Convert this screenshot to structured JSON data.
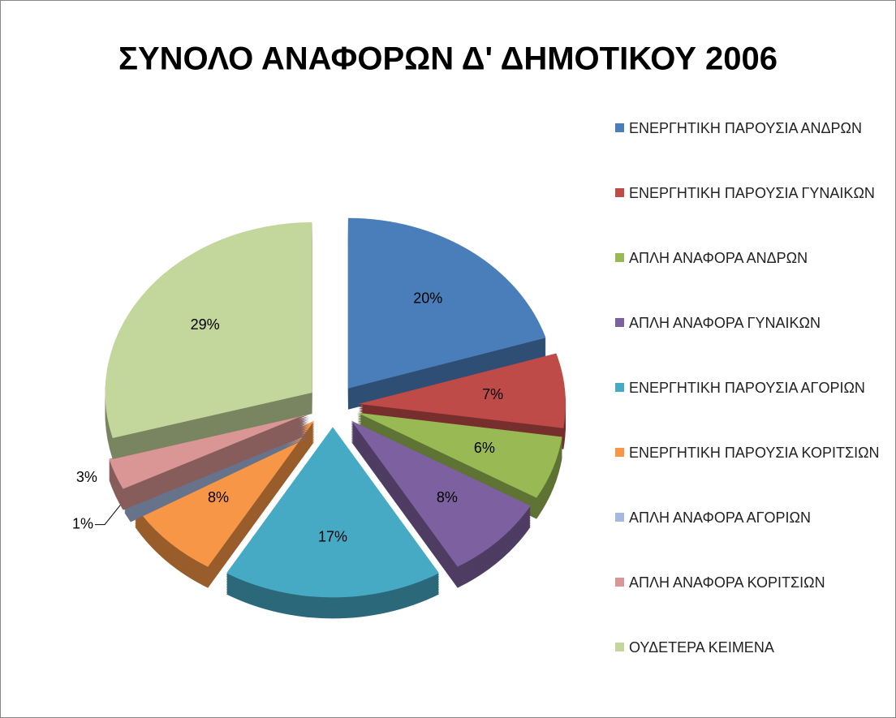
{
  "chart_data": {
    "type": "pie3d",
    "title": "ΣΥΝΟΛΟ ΑΝΑΦΟΡΩΝ Δ' ΔΗΜΟΤΙΚΟΥ 2006",
    "categories": [
      "ΕΝΕΡΓΗΤΙΚΗ ΠΑΡΟΥΣΙΑ ΑΝΔΡΩΝ",
      "ΕΝΕΡΓΗΤΙΚΗ ΠΑΡΟΥΣΙΑ ΓΥΝΑΙΚΩΝ",
      "ΑΠΛΗ ΑΝΑΦΟΡΑ ΑΝΔΡΩΝ",
      "ΑΠΛΗ ΑΝΑΦΟΡΑ ΓΥΝΑΙΚΩΝ",
      "ΕΝΕΡΓΗΤΙΚΗ ΠΑΡΟΥΣΙΑ ΑΓΟΡΙΩΝ",
      "ΕΝΕΡΓΗΤΙΚΗ ΠΑΡΟΥΣΙΑ ΚΟΡΙΤΣΙΩΝ",
      "ΑΠΛΗ ΑΝΑΦΟΡΑ ΑΓΟΡΙΩΝ",
      "ΑΠΛΗ ΑΝΑΦΟΡΑ ΚΟΡΙΤΣΙΩΝ",
      "ΟΥΔΕΤΕΡΑ ΚΕΙΜΕΝΑ"
    ],
    "values": [
      20,
      7,
      6,
      8,
      17,
      8,
      1,
      3,
      29
    ],
    "value_labels": [
      "20%",
      "7%",
      "6%",
      "8%",
      "17%",
      "8%",
      "1%",
      "3%",
      "29%"
    ],
    "colors": [
      "#4a7ebb",
      "#be4b48",
      "#98b954",
      "#7d60a0",
      "#46aac5",
      "#f79646",
      "#a5b9e0",
      "#d99694",
      "#c3d69b"
    ],
    "legend": "right"
  }
}
